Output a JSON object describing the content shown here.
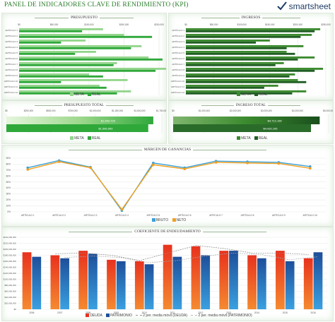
{
  "header": {
    "title": "PANEL DE INDICADORES CLAVE DE RENDIMIENTO (KPI)",
    "logo_text": "smartsheet"
  },
  "colors": {
    "meta_light": "#93d58c",
    "real_green": "#2fa83a",
    "ingreso_meta": "#3b8a2e",
    "ingreso_real": "#1f5e22",
    "bruto": "#3aa0d8",
    "neto": "#f0a020",
    "deuda": "#e8321e",
    "patrimonio": "#1d4f9a",
    "title_green": "#2b7d2b"
  },
  "presupuesto": {
    "title": "PRESUPUESTO",
    "legend_meta": "META",
    "legend_real": "REAL",
    "chart_data": {
      "type": "bar",
      "orientation": "horizontal",
      "categories": [
        "ARTÍCULO 1",
        "ARTÍCULO 2",
        "ARTÍCULO 3",
        "ARTÍCULO 4",
        "ARTÍCULO 5",
        "ARTÍCULO 6",
        "ARTÍCULO 7",
        "ARTÍCULO 8",
        "ARTÍCULO 9",
        "ARTÍCULO 10",
        "ARTÍCULO 11",
        "ARTÍCULO 12"
      ],
      "x_ticks": [
        "$0",
        "$50,000",
        "$100,000",
        "$150,000",
        "$200,000"
      ],
      "xlim": [
        0,
        200000
      ],
      "series": [
        {
          "name": "META",
          "values": [
            120000,
            150000,
            95000,
            175000,
            110000,
            185000,
            140000,
            210000,
            100000,
            155000,
            115000,
            160000
          ]
        },
        {
          "name": "REAL",
          "values": [
            90000,
            190000,
            60000,
            160000,
            80000,
            205000,
            135000,
            195000,
            120000,
            60000,
            125000,
            140000
          ]
        }
      ]
    }
  },
  "ingresos": {
    "title": "INGRESOS",
    "legend_meta": "META",
    "legend_real": "REAL",
    "chart_data": {
      "type": "bar",
      "orientation": "horizontal",
      "categories": [
        "ARTÍCULO 1",
        "ARTÍCULO 2",
        "ARTÍCULO 3",
        "ARTÍCULO 4",
        "ARTÍCULO 5",
        "ARTÍCULO 6",
        "ARTÍCULO 7",
        "ARTÍCULO 8",
        "ARTÍCULO 9",
        "ARTÍCULO 10",
        "ARTÍCULO 11",
        "ARTÍCULO 12"
      ],
      "x_ticks": [
        "$0",
        "$50,000",
        "$100,000",
        "$150,000",
        "$200,000",
        "$250,000"
      ],
      "xlim": [
        0,
        250000
      ],
      "series": [
        {
          "name": "META",
          "values": [
            240000,
            225000,
            150000,
            210000,
            180000,
            230000,
            175000,
            245000,
            195000,
            200000,
            165000,
            215000
          ]
        },
        {
          "name": "REAL",
          "values": [
            230000,
            205000,
            125000,
            180000,
            195000,
            200000,
            160000,
            230000,
            185000,
            215000,
            140000,
            190000
          ]
        }
      ]
    }
  },
  "presupuesto_total": {
    "title": "PRESUPUESTO TOTAL",
    "legend_meta": "META",
    "legend_real": "REAL",
    "chart_data": {
      "type": "bar",
      "orientation": "horizontal",
      "x_ticks": [
        "$0",
        "$250,000",
        "$500,000",
        "$750,000",
        "$1,000,000",
        "$1,250,000",
        "$1,500,000",
        "$1,750,000"
      ],
      "xlim": [
        0,
        1750000
      ],
      "meta_value": 1653720,
      "real_value": 1596993,
      "meta_label": "$1,653,720",
      "real_label": "$1,596,993"
    }
  },
  "ingreso_total": {
    "title": "INGRESO TOTAL",
    "legend_meta": "META",
    "legend_real": "REAL",
    "chart_data": {
      "type": "bar",
      "orientation": "horizontal",
      "x_ticks": [
        "$0",
        "$1,000,000",
        "$2,000,000",
        "$3,000,000",
        "$4,000,000",
        "$5,000,000"
      ],
      "xlim": [
        0,
        5000000
      ],
      "meta_value": 4712165,
      "real_value": 4432105,
      "meta_label": "$4,712,165",
      "real_label": "$4,432,105"
    }
  },
  "margen": {
    "title": "MÁRGEN DE GANANCIAS",
    "legend_bruto": "BRUTO",
    "legend_neto": "NETO",
    "chart_data": {
      "type": "line",
      "categories": [
        "ARTÍCULO 1",
        "ARTÍCULO 2",
        "ARTÍCULO 3",
        "ARTÍCULO 4",
        "ARTÍCULO 5",
        "ARTÍCULO 6",
        "ARTÍCULO 7",
        "ARTÍCULO 8",
        "ARTÍCULO 9",
        "ARTÍCULO 10"
      ],
      "y_ticks": [
        "0%",
        "10%",
        "20%",
        "30%",
        "40%",
        "50%",
        "60%",
        "70%",
        "80%",
        "90%"
      ],
      "ylim": [
        0,
        90
      ],
      "series": [
        {
          "name": "BRUTO",
          "values": [
            74,
            86,
            75,
            2,
            82,
            74,
            85,
            84,
            83,
            76
          ]
        },
        {
          "name": "NETO",
          "values": [
            71,
            84,
            74,
            4,
            79,
            72,
            83,
            82,
            81,
            73
          ]
        }
      ]
    }
  },
  "deuda": {
    "title": "COEFICIENTE DE ENDEUDAMIENTO",
    "legend_deuda": "DEUDA",
    "legend_patrimonio": "PATRIMONIO",
    "legend_ma_deuda": "2 per. media móvil (DEUDA)",
    "legend_ma_patrimonio": "2 per. media móvil (PATRIMONIO)",
    "chart_data": {
      "type": "bar",
      "categories": [
        "2006",
        "2007",
        "2008",
        "2009",
        "2010",
        "2011",
        "2012",
        "2013",
        "2014",
        "2015",
        "2016"
      ],
      "y_ticks": [
        "$0",
        "$20,000,000",
        "$40,000,000",
        "$60,000,000",
        "$80,000,000",
        "$100,000,000",
        "$120,000,000",
        "$140,000,000",
        "$160,000,000",
        "$180,000,000",
        "$200,000,000",
        "$220,000,000",
        "$240,000,000"
      ],
      "ylim": [
        0,
        240000000
      ],
      "series": [
        {
          "name": "DEUDA",
          "values": [
            190000000,
            180000000,
            195000000,
            165000000,
            160000000,
            215000000,
            210000000,
            195000000,
            180000000,
            195000000,
            170000000
          ]
        },
        {
          "name": "PATRIMONIO",
          "values": [
            175000000,
            170000000,
            185000000,
            160000000,
            150000000,
            175000000,
            180000000,
            195000000,
            170000000,
            160000000,
            190000000
          ]
        }
      ]
    }
  }
}
